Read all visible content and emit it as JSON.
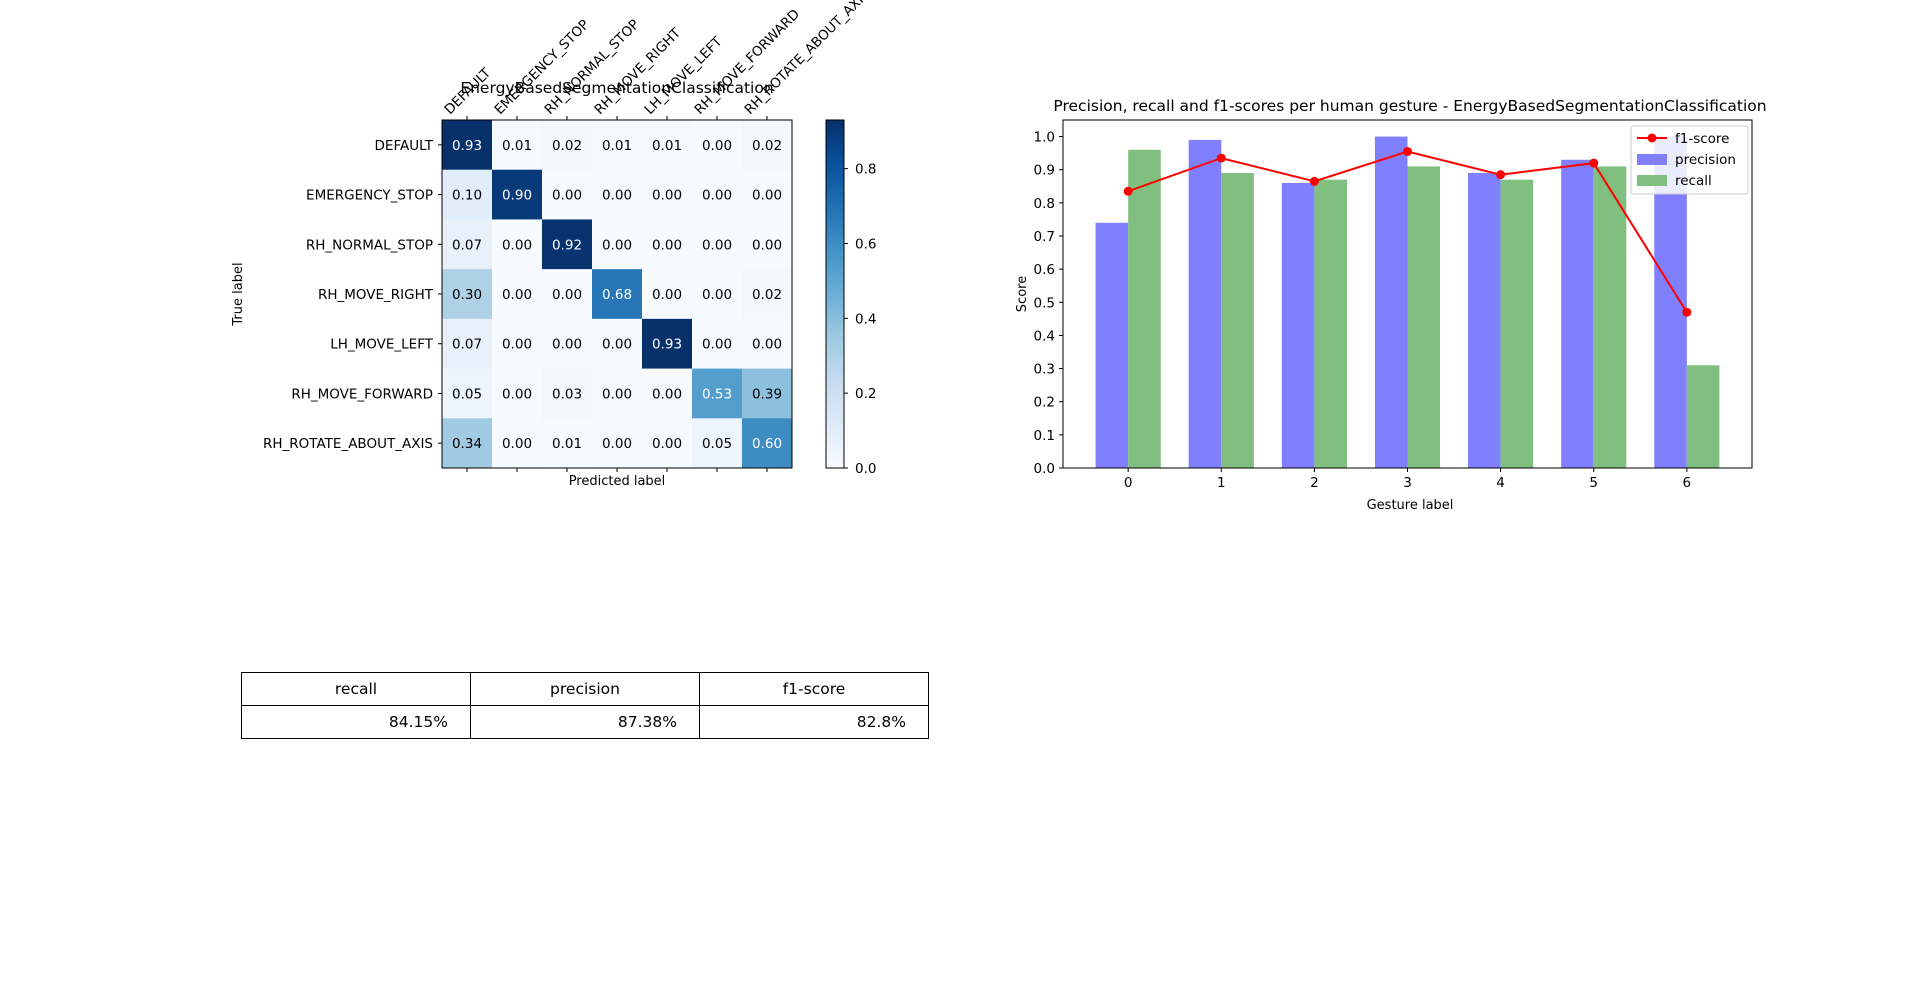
{
  "chart_data": [
    {
      "type": "heatmap",
      "title": "EnergyBasedSegmentationClassification",
      "xlabel": "Predicted label",
      "ylabel": "True label",
      "x_tick_labels": [
        "DEFAULT",
        "EMERGENCY_STOP",
        "RH_NORMAL_STOP",
        "RH_MOVE_RIGHT",
        "LH_MOVE_LEFT",
        "RH_MOVE_FORWARD",
        "RH_ROTATE_ABOUT_AXIS"
      ],
      "y_tick_labels": [
        "DEFAULT",
        "EMERGENCY_STOP",
        "RH_NORMAL_STOP",
        "RH_MOVE_RIGHT",
        "LH_MOVE_LEFT",
        "RH_MOVE_FORWARD",
        "RH_ROTATE_ABOUT_AXIS"
      ],
      "matrix": [
        [
          0.93,
          0.01,
          0.02,
          0.01,
          0.01,
          0.0,
          0.02
        ],
        [
          0.1,
          0.9,
          0.0,
          0.0,
          0.0,
          0.0,
          0.0
        ],
        [
          0.07,
          0.0,
          0.92,
          0.0,
          0.0,
          0.0,
          0.0
        ],
        [
          0.3,
          0.0,
          0.0,
          0.68,
          0.0,
          0.0,
          0.02
        ],
        [
          0.07,
          0.0,
          0.0,
          0.0,
          0.93,
          0.0,
          0.0
        ],
        [
          0.05,
          0.0,
          0.03,
          0.0,
          0.0,
          0.53,
          0.39
        ],
        [
          0.34,
          0.0,
          0.01,
          0.0,
          0.0,
          0.05,
          0.6
        ]
      ],
      "colormap": "Blues",
      "colorbar": {
        "range": [
          0.0,
          0.93
        ],
        "ticks": [
          "0.0",
          "0.2",
          "0.4",
          "0.6",
          "0.8"
        ]
      }
    },
    {
      "type": "bar",
      "title": "Precision, recall and f1-scores per human gesture - EnergyBasedSegmentationClassification",
      "xlabel": "Gesture label",
      "ylabel": "Score",
      "categories": [
        "0",
        "1",
        "2",
        "3",
        "4",
        "5",
        "6"
      ],
      "ylim": [
        0.0,
        1.05
      ],
      "y_ticks": [
        "0.0",
        "0.1",
        "0.2",
        "0.3",
        "0.4",
        "0.5",
        "0.6",
        "0.7",
        "0.8",
        "0.9",
        "1.0"
      ],
      "series": [
        {
          "name": "precision",
          "kind": "bar",
          "color": "#8080ff",
          "values": [
            0.74,
            0.99,
            0.86,
            1.0,
            0.89,
            0.93,
            1.0
          ]
        },
        {
          "name": "recall",
          "kind": "bar",
          "color": "#80bf80",
          "values": [
            0.96,
            0.89,
            0.87,
            0.91,
            0.87,
            0.91,
            0.31
          ]
        },
        {
          "name": "f1-score",
          "kind": "line",
          "color": "#ff0000",
          "values": [
            0.835,
            0.935,
            0.865,
            0.955,
            0.885,
            0.92,
            0.47
          ]
        }
      ],
      "legend_position": "top-right",
      "legend_order": [
        "f1-score",
        "precision",
        "recall"
      ]
    }
  ],
  "summary_table": {
    "headers": [
      "recall",
      "precision",
      "f1-score"
    ],
    "values": [
      "84.15%",
      "87.38%",
      "82.8%"
    ]
  }
}
